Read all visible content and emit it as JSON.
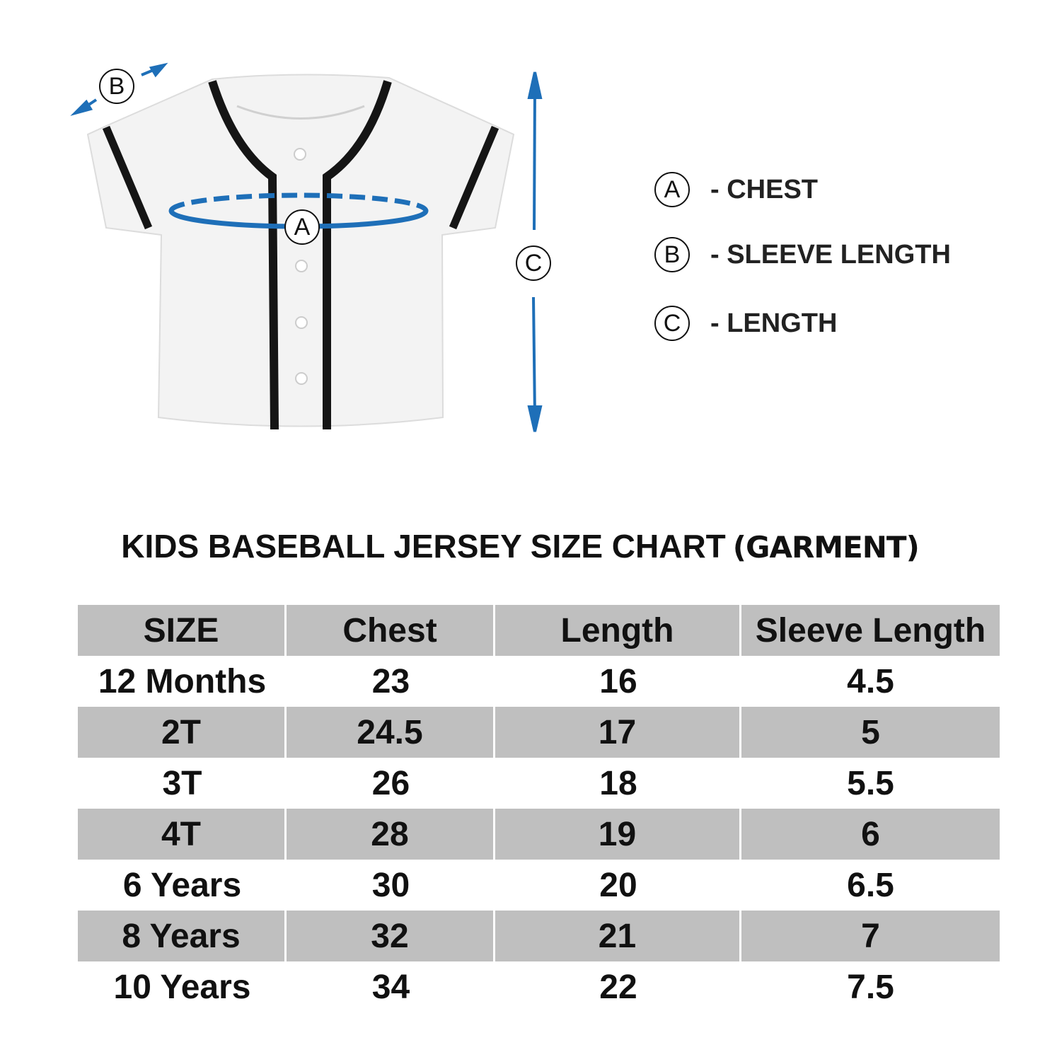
{
  "diagram": {
    "chest_marker": "A",
    "sleeve_marker": "B",
    "length_marker": "C"
  },
  "legend": {
    "items": [
      {
        "marker": "A",
        "label": "- CHEST"
      },
      {
        "marker": "B",
        "label": "- SLEEVE LENGTH"
      },
      {
        "marker": "C",
        "label": "- LENGTH"
      }
    ]
  },
  "header": {
    "title": "KIDS BASEBALL JERSEY SIZE CHART",
    "subtitle": "(GARMENT)"
  },
  "table": {
    "columns": [
      "SIZE",
      "Chest",
      "Length",
      "Sleeve Length"
    ],
    "rows": [
      [
        "12 Months",
        23,
        16,
        4.5
      ],
      [
        "2T",
        24.5,
        17,
        5
      ],
      [
        "3T",
        26,
        18,
        5.5
      ],
      [
        "4T",
        28,
        19,
        6
      ],
      [
        "6 Years",
        30,
        20,
        6.5
      ],
      [
        "8 Years",
        32,
        21,
        7
      ],
      [
        "10 Years",
        34,
        22,
        7.5
      ]
    ]
  }
}
